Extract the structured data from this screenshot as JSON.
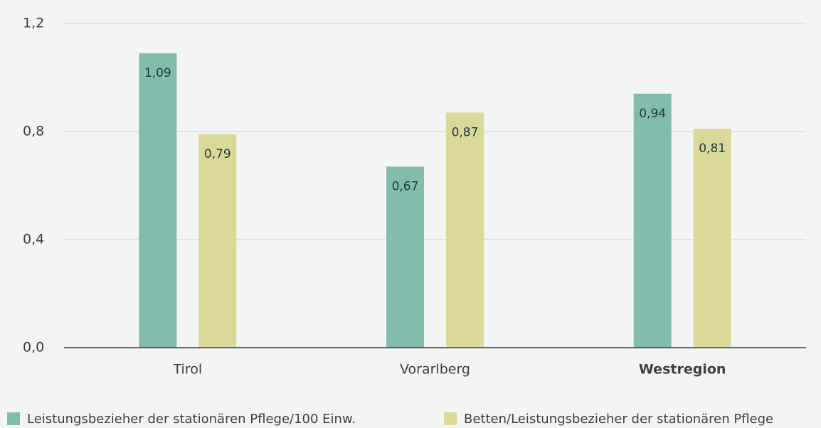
{
  "chart_data": {
    "type": "bar",
    "categories": [
      "Tirol",
      "Vorarlberg",
      "Westregion"
    ],
    "series": [
      {
        "name": "Leistungsbezieher der stationären Pflege/100 Einw.",
        "color": "#82bcad",
        "values": [
          1.09,
          0.67,
          0.94
        ],
        "value_labels": [
          "1,09",
          "0,67",
          "0,94"
        ]
      },
      {
        "name": "Betten/Leistungsbezieher der stationären Pflege",
        "color": "#dcd89a",
        "values": [
          0.79,
          0.87,
          0.81
        ],
        "value_labels": [
          "0,79",
          "0,87",
          "0,81"
        ]
      }
    ],
    "ylim": [
      0,
      1.2
    ],
    "yticks": [
      {
        "value": 0,
        "label": "0,0"
      },
      {
        "value": 0.4,
        "label": "0,4"
      },
      {
        "value": 0.8,
        "label": "0,8"
      },
      {
        "value": 1.2,
        "label": "1,2"
      }
    ],
    "grid": true,
    "legend": "bottom"
  }
}
